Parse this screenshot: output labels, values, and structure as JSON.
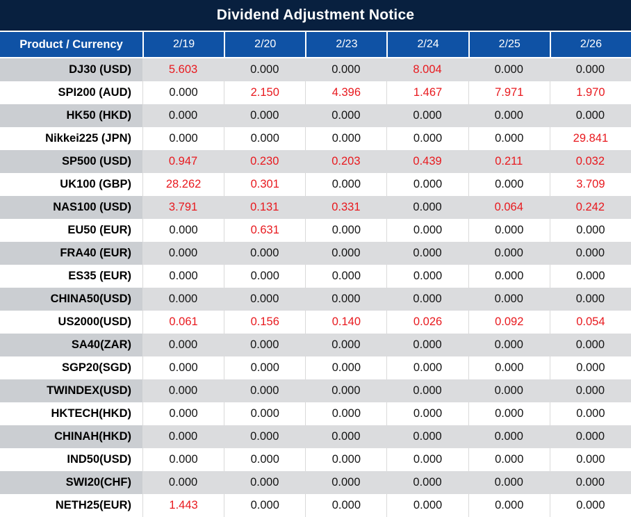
{
  "title": "Dividend Adjustment Notice",
  "table": {
    "header": {
      "product_label": "Product / Currency",
      "dates": [
        "2/19",
        "2/20",
        "2/23",
        "2/24",
        "2/25",
        "2/26"
      ]
    },
    "rows": [
      {
        "product": "DJ30 (USD)",
        "values": [
          "5.603",
          "0.000",
          "0.000",
          "8.004",
          "0.000",
          "0.000"
        ],
        "red": [
          true,
          false,
          false,
          true,
          false,
          false
        ]
      },
      {
        "product": "SPI200 (AUD)",
        "values": [
          "0.000",
          "2.150",
          "4.396",
          "1.467",
          "7.971",
          "1.970"
        ],
        "red": [
          false,
          true,
          true,
          true,
          true,
          true
        ]
      },
      {
        "product": "HK50 (HKD)",
        "values": [
          "0.000",
          "0.000",
          "0.000",
          "0.000",
          "0.000",
          "0.000"
        ],
        "red": [
          false,
          false,
          false,
          false,
          false,
          false
        ]
      },
      {
        "product": "Nikkei225 (JPN)",
        "values": [
          "0.000",
          "0.000",
          "0.000",
          "0.000",
          "0.000",
          "29.841"
        ],
        "red": [
          false,
          false,
          false,
          false,
          false,
          true
        ]
      },
      {
        "product": "SP500 (USD)",
        "values": [
          "0.947",
          "0.230",
          "0.203",
          "0.439",
          "0.211",
          "0.032"
        ],
        "red": [
          true,
          true,
          true,
          true,
          true,
          true
        ]
      },
      {
        "product": "UK100 (GBP)",
        "values": [
          "28.262",
          "0.301",
          "0.000",
          "0.000",
          "0.000",
          "3.709"
        ],
        "red": [
          true,
          true,
          false,
          false,
          false,
          true
        ]
      },
      {
        "product": "NAS100 (USD)",
        "values": [
          "3.791",
          "0.131",
          "0.331",
          "0.000",
          "0.064",
          "0.242"
        ],
        "red": [
          true,
          true,
          true,
          false,
          true,
          true
        ]
      },
      {
        "product": "EU50 (EUR)",
        "values": [
          "0.000",
          "0.631",
          "0.000",
          "0.000",
          "0.000",
          "0.000"
        ],
        "red": [
          false,
          true,
          false,
          false,
          false,
          false
        ]
      },
      {
        "product": "FRA40 (EUR)",
        "values": [
          "0.000",
          "0.000",
          "0.000",
          "0.000",
          "0.000",
          "0.000"
        ],
        "red": [
          false,
          false,
          false,
          false,
          false,
          false
        ]
      },
      {
        "product": "ES35 (EUR)",
        "values": [
          "0.000",
          "0.000",
          "0.000",
          "0.000",
          "0.000",
          "0.000"
        ],
        "red": [
          false,
          false,
          false,
          false,
          false,
          false
        ]
      },
      {
        "product": "CHINA50(USD)",
        "values": [
          "0.000",
          "0.000",
          "0.000",
          "0.000",
          "0.000",
          "0.000"
        ],
        "red": [
          false,
          false,
          false,
          false,
          false,
          false
        ]
      },
      {
        "product": "US2000(USD)",
        "values": [
          "0.061",
          "0.156",
          "0.140",
          "0.026",
          "0.092",
          "0.054"
        ],
        "red": [
          true,
          true,
          true,
          true,
          true,
          true
        ]
      },
      {
        "product": "SA40(ZAR)",
        "values": [
          "0.000",
          "0.000",
          "0.000",
          "0.000",
          "0.000",
          "0.000"
        ],
        "red": [
          false,
          false,
          false,
          false,
          false,
          false
        ]
      },
      {
        "product": "SGP20(SGD)",
        "values": [
          "0.000",
          "0.000",
          "0.000",
          "0.000",
          "0.000",
          "0.000"
        ],
        "red": [
          false,
          false,
          false,
          false,
          false,
          false
        ]
      },
      {
        "product": "TWINDEX(USD)",
        "values": [
          "0.000",
          "0.000",
          "0.000",
          "0.000",
          "0.000",
          "0.000"
        ],
        "red": [
          false,
          false,
          false,
          false,
          false,
          false
        ]
      },
      {
        "product": "HKTECH(HKD)",
        "values": [
          "0.000",
          "0.000",
          "0.000",
          "0.000",
          "0.000",
          "0.000"
        ],
        "red": [
          false,
          false,
          false,
          false,
          false,
          false
        ]
      },
      {
        "product": "CHINAH(HKD)",
        "values": [
          "0.000",
          "0.000",
          "0.000",
          "0.000",
          "0.000",
          "0.000"
        ],
        "red": [
          false,
          false,
          false,
          false,
          false,
          false
        ]
      },
      {
        "product": "IND50(USD)",
        "values": [
          "0.000",
          "0.000",
          "0.000",
          "0.000",
          "0.000",
          "0.000"
        ],
        "red": [
          false,
          false,
          false,
          false,
          false,
          false
        ]
      },
      {
        "product": "SWI20(CHF)",
        "values": [
          "0.000",
          "0.000",
          "0.000",
          "0.000",
          "0.000",
          "0.000"
        ],
        "red": [
          false,
          false,
          false,
          false,
          false,
          false
        ]
      },
      {
        "product": "NETH25(EUR)",
        "values": [
          "1.443",
          "0.000",
          "0.000",
          "0.000",
          "0.000",
          "0.000"
        ],
        "red": [
          true,
          false,
          false,
          false,
          false,
          false
        ]
      }
    ]
  },
  "colors": {
    "title_bg": "#08203f",
    "header_bg": "#0f52a5",
    "row_gray_label": "#cbced2",
    "row_gray_value": "#dbdcde",
    "row_white": "#ffffff",
    "value_red": "#e8191e",
    "value_black": "#141414",
    "separator": "#d9d9d9"
  }
}
